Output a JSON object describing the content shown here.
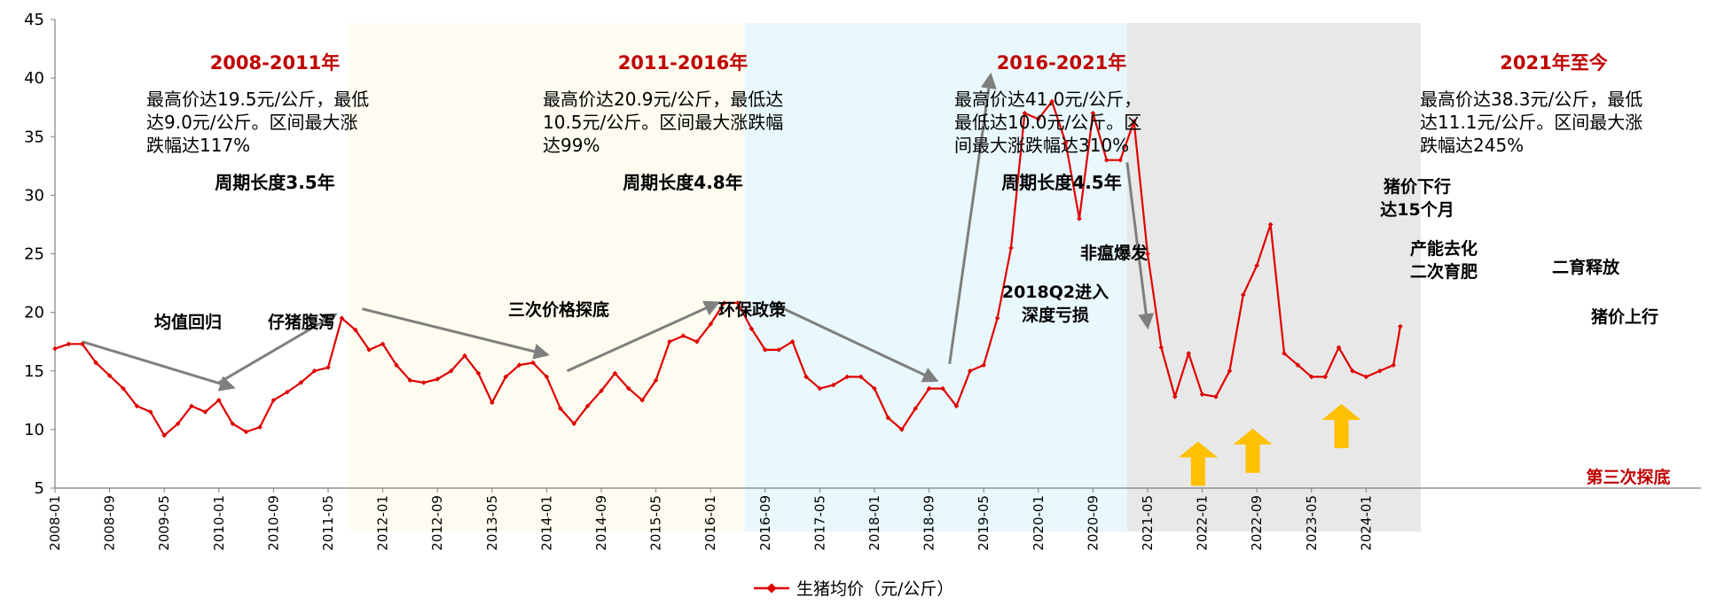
{
  "chart_data": {
    "type": "line",
    "y_ticks": [
      "45",
      "40",
      "35",
      "30",
      "25",
      "20",
      "15",
      "10",
      "5"
    ],
    "ylim": [
      5,
      45
    ],
    "x_ticks": [
      "2008-01",
      "2008-09",
      "2009-05",
      "2010-01",
      "2010-09",
      "2011-05",
      "2012-01",
      "2012-09",
      "2013-05",
      "2014-01",
      "2014-09",
      "2015-05",
      "2016-01",
      "2016-09",
      "2017-05",
      "2018-01",
      "2018-09",
      "2019-05",
      "2020-01",
      "2020-09",
      "2021-05",
      "2022-01",
      "2022-09",
      "2023-05",
      "2024-01"
    ],
    "grid": false,
    "legend_position": "bottom",
    "colors": {
      "line": "#e00000",
      "arrow": "#7f7f7f",
      "yellow_arrow": "#ffc000",
      "period_red": "#c00000"
    },
    "series": [
      {
        "name": "生猪均价（元/公斤）",
        "x": [
          "2008-01",
          "2008-03",
          "2008-05",
          "2008-07",
          "2008-09",
          "2008-11",
          "2009-01",
          "2009-03",
          "2009-05",
          "2009-07",
          "2009-09",
          "2009-11",
          "2010-01",
          "2010-03",
          "2010-05",
          "2010-07",
          "2010-09",
          "2010-11",
          "2011-01",
          "2011-03",
          "2011-05",
          "2011-07",
          "2011-09",
          "2011-11",
          "2012-01",
          "2012-03",
          "2012-05",
          "2012-07",
          "2012-09",
          "2012-11",
          "2013-01",
          "2013-03",
          "2013-05",
          "2013-07",
          "2013-09",
          "2013-11",
          "2014-01",
          "2014-03",
          "2014-05",
          "2014-07",
          "2014-09",
          "2014-11",
          "2015-01",
          "2015-03",
          "2015-05",
          "2015-07",
          "2015-09",
          "2015-11",
          "2016-01",
          "2016-03",
          "2016-05",
          "2016-07",
          "2016-09",
          "2016-11",
          "2017-01",
          "2017-03",
          "2017-05",
          "2017-07",
          "2017-09",
          "2017-11",
          "2018-01",
          "2018-03",
          "2018-05",
          "2018-07",
          "2018-09",
          "2018-11",
          "2019-01",
          "2019-03",
          "2019-05",
          "2019-07",
          "2019-09",
          "2019-11",
          "2020-01",
          "2020-03",
          "2020-05",
          "2020-07",
          "2020-09",
          "2020-11",
          "2021-01",
          "2021-03",
          "2021-05",
          "2021-07",
          "2021-09",
          "2021-11",
          "2022-01",
          "2022-03",
          "2022-05",
          "2022-07",
          "2022-09",
          "2022-11",
          "2023-01",
          "2023-03",
          "2023-05",
          "2023-07",
          "2023-09",
          "2023-11",
          "2024-01",
          "2024-03",
          "2024-05",
          "2024-06"
        ],
        "values": [
          16.9,
          17.3,
          17.3,
          15.7,
          14.6,
          13.5,
          12.0,
          11.5,
          9.5,
          10.5,
          12.0,
          11.5,
          12.5,
          10.5,
          9.8,
          10.2,
          12.5,
          13.2,
          14.0,
          15.0,
          15.3,
          19.5,
          18.5,
          16.8,
          17.3,
          15.5,
          14.2,
          14.0,
          14.3,
          15.0,
          16.3,
          14.8,
          12.3,
          14.5,
          15.5,
          15.7,
          14.5,
          11.8,
          10.5,
          12.0,
          13.3,
          14.8,
          13.5,
          12.5,
          14.2,
          17.5,
          18.0,
          17.5,
          19.0,
          20.8,
          20.8,
          18.6,
          16.8,
          16.8,
          17.5,
          14.5,
          13.5,
          13.8,
          14.5,
          14.5,
          13.5,
          11.0,
          10.0,
          11.8,
          13.5,
          13.5,
          12.0,
          15.0,
          15.5,
          19.5,
          25.5,
          37.0,
          36.5,
          38.0,
          34.5,
          28.0,
          37.0,
          33.0,
          33.0,
          36.3,
          25.0,
          17.0,
          12.8,
          16.5,
          13.0,
          12.8,
          15.0,
          21.5,
          24.0,
          27.5,
          16.5,
          15.5,
          14.5,
          14.5,
          17.0,
          15.0,
          14.5,
          15.0,
          15.5,
          18.8
        ]
      }
    ],
    "periods": [
      {
        "from": "2008-01",
        "to": "2011-08",
        "bg": "#ffffff",
        "title": "2008-2011年",
        "desc": [
          "最高价达19.5元/公斤，最低",
          "达9.0元/公斤。区间最大涨",
          "跌幅达117%"
        ],
        "cycle": "周期长度3.5年"
      },
      {
        "from": "2011-08",
        "to": "2016-06",
        "bg": "#fefcf0",
        "title": "2011-2016年",
        "desc": [
          "最高价达20.9元/公斤，最低达",
          "10.5元/公斤。区间最大涨跌幅",
          "达99%"
        ],
        "cycle": "周期长度4.8年"
      },
      {
        "from": "2016-06",
        "to": "2021-02",
        "bg": "#e9f8fc",
        "title": "2016-2021年",
        "desc": [
          "最高价达41.0元/公斤，",
          "最低达10.0元/公斤。区",
          "间最大涨跌幅达310%"
        ],
        "cycle": "周期长度4.5年"
      },
      {
        "from": "2021-02",
        "to": "2024-09",
        "bg": "#e8e8e8",
        "title": "2021年至今",
        "desc": [
          "最高价达38.3元/公斤，最低",
          "达11.1元/公斤。区间最大涨",
          "跌幅达245%"
        ],
        "cycle": ""
      }
    ],
    "annotations": {
      "mean_reversion": "均值回归",
      "piglet_diarrhea": "仔猪腹泻",
      "triple_bottom": "三次价格探底",
      "env_policy": "环保政策",
      "loss_line1": "2018Q2进入",
      "loss_line2": "深度亏损",
      "asf": "非瘟爆发",
      "down_line1": "猪价下行",
      "down_line2": "达15个月",
      "destock_line1": "产能去化",
      "destock_line2": "二次育肥",
      "second_release": "二育释放",
      "price_up": "猪价上行",
      "third_bottom": "第三次探底"
    }
  }
}
